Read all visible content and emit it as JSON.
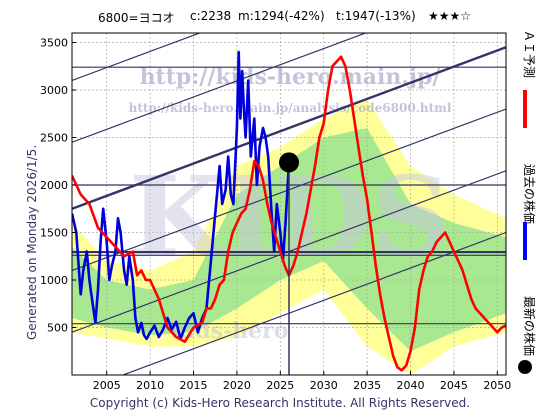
{
  "header": {
    "code_name": "6800=ヨコオ",
    "current": "c:2238",
    "min": "m:1294(-42%)",
    "target": "t:1947(-13%)",
    "rating": "★★★☆"
  },
  "side_text": "Generated on Monday 2026/1/5.",
  "footer": "Copyright (c) Kids-Hero Research Institute. All Rights Reserved.",
  "watermark": {
    "url_main": "http://kids-hero.main.jp/",
    "url_sub": "http://kids-hero.main.jp/analysis/code6800.html",
    "big": "KIDS",
    "low": "kids-hero"
  },
  "legend": [
    {
      "label": "ＡＩ予測",
      "color": "#ff0000",
      "icon": "red-line"
    },
    {
      "label": "過去の株価",
      "color": "#0000ff",
      "icon": "blue-line"
    },
    {
      "label": "最新の株価",
      "color": "#000000",
      "icon": "black-dot"
    }
  ],
  "chart_data": {
    "type": "line",
    "xlim": [
      2001,
      2051
    ],
    "ylim": [
      0,
      3600
    ],
    "x_ticks": [
      2005,
      2010,
      2015,
      2020,
      2025,
      2030,
      2035,
      2040,
      2045,
      2050
    ],
    "y_ticks": [
      500,
      1000,
      1500,
      2000,
      2500,
      3000,
      3500
    ],
    "grid": true,
    "horizontal_levels": [
      3240,
      2000,
      1294,
      1260,
      540
    ],
    "current_point": {
      "x": 2026.0,
      "y": 2238
    },
    "series": [
      {
        "color": "#0000dd",
        "x": [
          2001.0,
          2001.5,
          2002.0,
          2002.3,
          2002.7,
          2003.0,
          2003.3,
          2003.7,
          2004.0,
          2004.3,
          2004.6,
          2005.0,
          2005.3,
          2005.6,
          2006.0,
          2006.3,
          2006.6,
          2007.0,
          2007.3,
          2007.6,
          2008.0,
          2008.3,
          2008.6,
          2009.0,
          2009.3,
          2009.6,
          2010.0,
          2010.5,
          2011.0,
          2011.5,
          2012.0,
          2012.5,
          2013.0,
          2013.5,
          2014.0,
          2014.5,
          2015.0,
          2015.5,
          2016.0,
          2016.5,
          2017.0,
          2017.3,
          2017.7,
          2018.0,
          2018.3,
          2018.7,
          2019.0,
          2019.3,
          2019.6,
          2020.0,
          2020.2,
          2020.4,
          2020.6,
          2020.8,
          2021.0,
          2021.3,
          2021.6,
          2022.0,
          2022.3,
          2022.6,
          2023.0,
          2023.3,
          2023.6,
          2024.0,
          2024.3,
          2024.6,
          2025.0,
          2025.3,
          2025.6,
          2026.0
        ],
        "y": [
          1700,
          1500,
          850,
          1100,
          1300,
          1000,
          800,
          550,
          900,
          1400,
          1750,
          1400,
          1000,
          1150,
          1300,
          1650,
          1500,
          1100,
          950,
          1250,
          1000,
          600,
          450,
          550,
          420,
          380,
          450,
          520,
          400,
          480,
          600,
          480,
          560,
          380,
          500,
          600,
          650,
          450,
          600,
          700,
          1200,
          1500,
          1900,
          2200,
          1800,
          1950,
          2300,
          1900,
          1800,
          2600,
          3400,
          2700,
          3200,
          2800,
          2500,
          3100,
          2300,
          2700,
          2000,
          2400,
          2600,
          2500,
          2300,
          1700,
          1300,
          1800,
          1500,
          1200,
          1600,
          2238
        ]
      },
      {
        "color": "#ff0000",
        "x": [
          2001.0,
          2002.0,
          2003.0,
          2004.0,
          2005.0,
          2006.0,
          2007.0,
          2008.0,
          2008.5,
          2009.0,
          2009.5,
          2010.0,
          2011.0,
          2012.0,
          2013.0,
          2014.0,
          2015.0,
          2016.0,
          2016.5,
          2017.0,
          2017.5,
          2018.0,
          2018.5,
          2019.0,
          2019.5,
          2020.0,
          2020.5,
          2021.0,
          2021.5,
          2022.0,
          2022.5,
          2023.0,
          2023.5,
          2024.0,
          2024.5,
          2025.0,
          2025.5,
          2026.0,
          2026.5,
          2027.0,
          2027.5,
          2028.0,
          2028.5,
          2029.0,
          2029.5,
          2030.0,
          2030.5,
          2031.0,
          2031.5,
          2032.0,
          2032.5,
          2033.0,
          2033.5,
          2034.0,
          2034.5,
          2035.0,
          2035.5,
          2036.0,
          2036.5,
          2037.0,
          2037.5,
          2038.0,
          2038.5,
          2039.0,
          2039.5,
          2040.0,
          2040.5,
          2041.0,
          2041.5,
          2042.0,
          2042.5,
          2043.0,
          2043.5,
          2044.0,
          2044.5,
          2045.0,
          2045.5,
          2046.0,
          2046.5,
          2047.0,
          2047.5,
          2048.0,
          2048.5,
          2049.0,
          2049.5,
          2050.0,
          2050.5,
          2051.0
        ],
        "y": [
          2100,
          1900,
          1800,
          1550,
          1450,
          1350,
          1250,
          1300,
          1050,
          1100,
          1000,
          1000,
          800,
          500,
          400,
          350,
          500,
          550,
          700,
          700,
          800,
          950,
          1000,
          1300,
          1500,
          1600,
          1700,
          1750,
          1950,
          2250,
          2200,
          2050,
          1800,
          1600,
          1450,
          1300,
          1150,
          1050,
          1150,
          1300,
          1500,
          1700,
          1950,
          2200,
          2500,
          2650,
          3000,
          3250,
          3300,
          3350,
          3250,
          3000,
          2700,
          2400,
          2100,
          1850,
          1500,
          1150,
          850,
          600,
          400,
          200,
          80,
          50,
          100,
          250,
          500,
          900,
          1100,
          1250,
          1300,
          1400,
          1450,
          1500,
          1400,
          1300,
          1200,
          1100,
          950,
          800,
          700,
          650,
          600,
          550,
          500,
          450,
          500,
          520
        ]
      }
    ],
    "bands": [
      {
        "color": "#ffff99",
        "x": [
          2001,
          2005,
          2010,
          2015,
          2020,
          2025,
          2030,
          2035,
          2040,
          2045,
          2051
        ],
        "upper": [
          1600,
          1200,
          1100,
          1300,
          2200,
          2400,
          2700,
          2900,
          2200,
          1900,
          1650
        ],
        "lower": [
          450,
          380,
          300,
          300,
          400,
          650,
          900,
          300,
          0,
          300,
          450
        ]
      },
      {
        "color": "#a8e890",
        "x": [
          2001,
          2005,
          2010,
          2015,
          2020,
          2025,
          2030,
          2035,
          2040,
          2045,
          2051
        ],
        "upper": [
          1350,
          1000,
          900,
          1000,
          1900,
          2200,
          2500,
          2600,
          1800,
          1600,
          1450
        ],
        "lower": [
          600,
          500,
          420,
          450,
          700,
          1000,
          1200,
          700,
          250,
          450,
          650
        ]
      }
    ],
    "channels": {
      "slope": 34,
      "intercepts": [
        3100,
        2450,
        1750,
        1100,
        450,
        -200
      ]
    }
  }
}
